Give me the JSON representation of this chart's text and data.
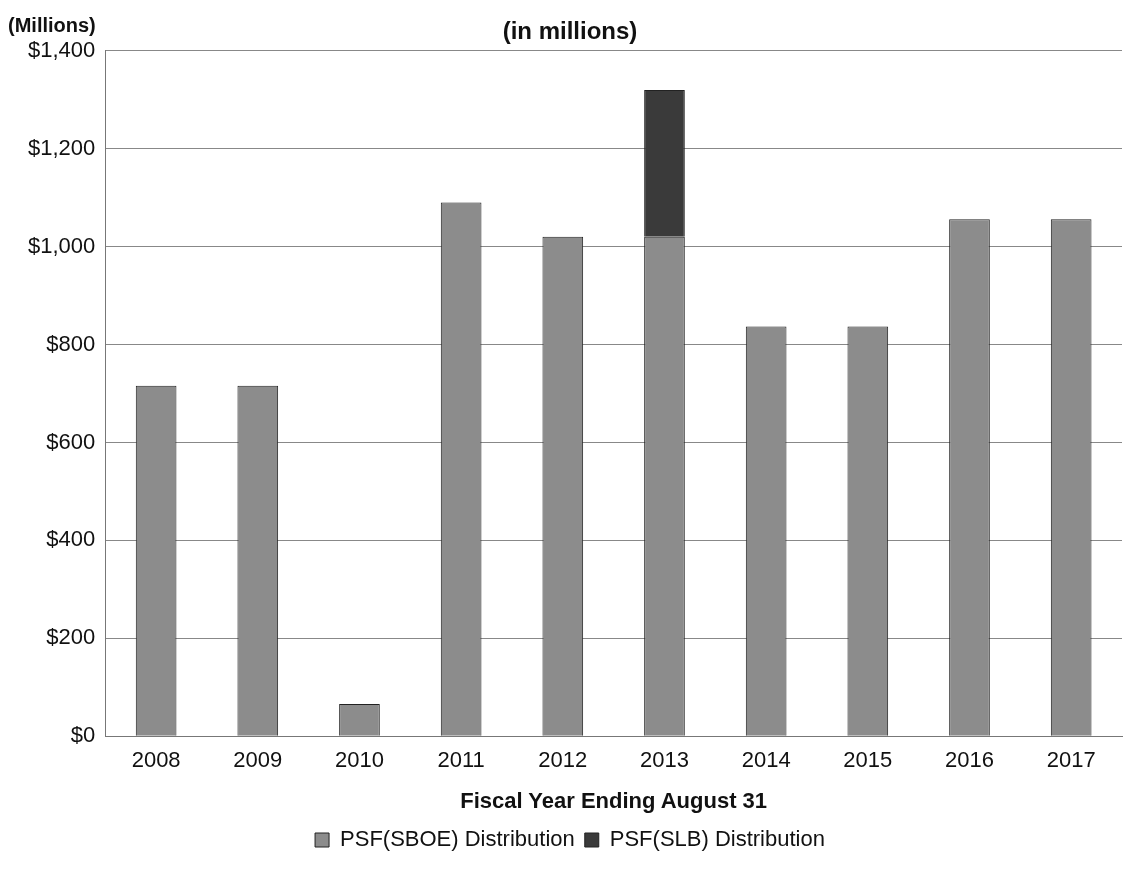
{
  "chart_data": {
    "type": "bar",
    "title": "(in millions)",
    "ylabel": "(Millions)",
    "xlabel": "Fiscal Year Ending August 31",
    "categories": [
      "2008",
      "2009",
      "2010",
      "2011",
      "2012",
      "2013",
      "2014",
      "2015",
      "2016",
      "2017"
    ],
    "series": [
      {
        "name": "PSF(SBOE) Distribution",
        "color": "#8c8c8c",
        "values": [
          716,
          716,
          66,
          1090,
          1020,
          1020,
          837,
          837,
          1056,
          1056
        ]
      },
      {
        "name": "PSF(SLB) Distribution",
        "color": "#3a3a3a",
        "values": [
          null,
          null,
          null,
          null,
          null,
          300,
          null,
          null,
          null,
          null
        ]
      }
    ],
    "stacked": true,
    "ylim": [
      0,
      1400
    ],
    "yticks": [
      {
        "value": 0,
        "label": "$0"
      },
      {
        "value": 200,
        "label": "$200"
      },
      {
        "value": 400,
        "label": "$400"
      },
      {
        "value": 600,
        "label": "$600"
      },
      {
        "value": 800,
        "label": "$800"
      },
      {
        "value": 1000,
        "label": "$1,000"
      },
      {
        "value": 1200,
        "label": "$1,200"
      },
      {
        "value": 1400,
        "label": "$1,400"
      }
    ],
    "grid": "y",
    "legend": "bottom"
  }
}
